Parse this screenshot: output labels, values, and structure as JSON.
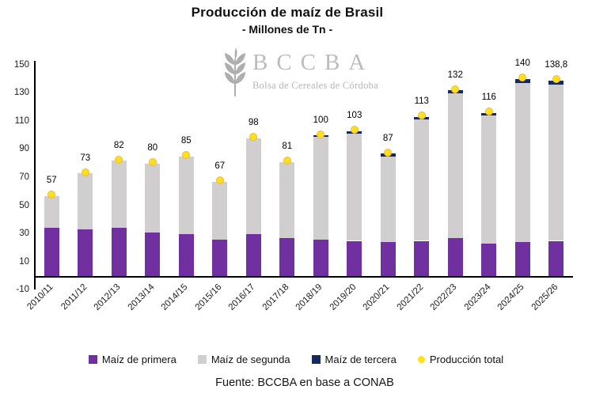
{
  "title": "Producción de maíz de Brasil",
  "subtitle": "- Millones de Tn -",
  "watermark": {
    "icon": "wheat-spike-icon",
    "acronym": "BCCBA",
    "name": "Bolsa de Cereales de Córdoba"
  },
  "footer": {
    "source": "Fuente: BCCBA en base a CONAB"
  },
  "colors": {
    "primera": "#7030A0",
    "segunda": "#D0CECE",
    "tercera": "#142B5C",
    "total_marker": "#FFE01A",
    "axis": "#000000",
    "watermark": "#b5b5b5"
  },
  "legend": [
    {
      "label": "Maíz de primera",
      "marker": "square",
      "color": "#7030A0"
    },
    {
      "label": "Maíz de segunda",
      "marker": "square",
      "color": "#D0CECE"
    },
    {
      "label": "Maíz de tercera",
      "marker": "square",
      "color": "#142B5C"
    },
    {
      "label": "Producción total",
      "marker": "circle",
      "color": "#FFE01A"
    }
  ],
  "chart_data": {
    "type": "bar",
    "subtype": "stacked-columns-with-total-markers",
    "title": "Producción de maíz de Brasil",
    "subtitle": "- Millones de Tn -",
    "xlabel": "",
    "ylabel": "",
    "grid": false,
    "legend_position": "bottom",
    "categories": [
      "2010/11",
      "2011/12",
      "2012/13",
      "2013/14",
      "2014/15",
      "2015/16",
      "2016/17",
      "2017/18",
      "2018/19",
      "2019/20",
      "2020/21",
      "2021/22",
      "2022/23",
      "2023/24",
      "2024/25",
      "2025/26"
    ],
    "series": [
      {
        "name": "Maíz de primera",
        "color": "#7030A0",
        "values": [
          34,
          33,
          34,
          31,
          30,
          26,
          30,
          27,
          26,
          25,
          24,
          25,
          27,
          23,
          24,
          25
        ]
      },
      {
        "name": "Maíz de segunda",
        "color": "#D0CECE",
        "values": [
          23,
          40,
          48,
          49,
          55,
          41,
          68,
          54,
          73,
          76,
          61,
          86,
          103,
          91,
          113,
          111
        ]
      },
      {
        "name": "Maíz de tercera",
        "color": "#142B5C",
        "values": [
          0,
          0,
          0,
          0,
          0,
          0,
          0,
          0,
          1,
          2,
          2,
          2,
          2,
          2,
          3,
          2.8
        ]
      }
    ],
    "totals": [
      57,
      73,
      82,
      80,
      85,
      67,
      98,
      81,
      100,
      103,
      87,
      113,
      132,
      116,
      140,
      138.8
    ],
    "total_labels": [
      "57",
      "73",
      "82",
      "80",
      "85",
      "67",
      "98",
      "81",
      "100",
      "103",
      "87",
      "113",
      "132",
      "116",
      "140",
      "138,8"
    ],
    "y_axis": {
      "min": -10,
      "max": 150,
      "step": 20,
      "ticks": [
        150,
        130,
        110,
        90,
        70,
        50,
        30,
        10,
        -10
      ]
    }
  }
}
